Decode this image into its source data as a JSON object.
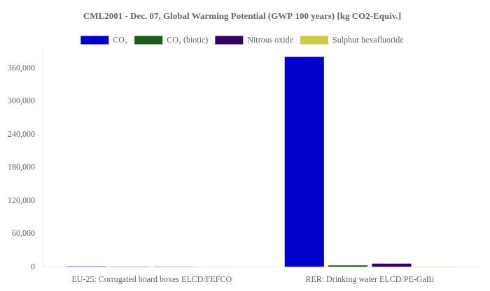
{
  "chart_data": {
    "type": "bar",
    "title": "CML2001 - Dec. 07, Global Warming Potential (GWP 100 years) [kg CO2-Equiv.]",
    "categories": [
      "EU-25: Corrugated board boxes ELCD/FEFCO",
      "RER: Drinking water ELCD/PE-GaBi"
    ],
    "series": [
      {
        "name": "CO₂",
        "color": "#0000CC",
        "values": [
          1200,
          380000
        ]
      },
      {
        "name": "CO₂ (biotic)",
        "color": "#1A5C1A",
        "values": [
          900,
          3000
        ]
      },
      {
        "name": "Nitrous oxide",
        "color": "#330066",
        "values": [
          600,
          6000
        ]
      },
      {
        "name": "Sulphur hexafluoride",
        "color": "#CCCC44",
        "values": [
          300,
          800
        ]
      }
    ],
    "ylim": [
      0,
      390000
    ],
    "yticks": [
      0,
      {
        "value": 60000,
        "label": "60,000"
      },
      {
        "value": 120000,
        "label": "120,000"
      },
      {
        "value": 180000,
        "label": "180,000"
      },
      {
        "value": 240000,
        "label": "240,000"
      },
      {
        "value": 300000,
        "label": "300,000"
      },
      {
        "value": 360000,
        "label": "360,000"
      }
    ],
    "grid": false,
    "legend": "top"
  }
}
